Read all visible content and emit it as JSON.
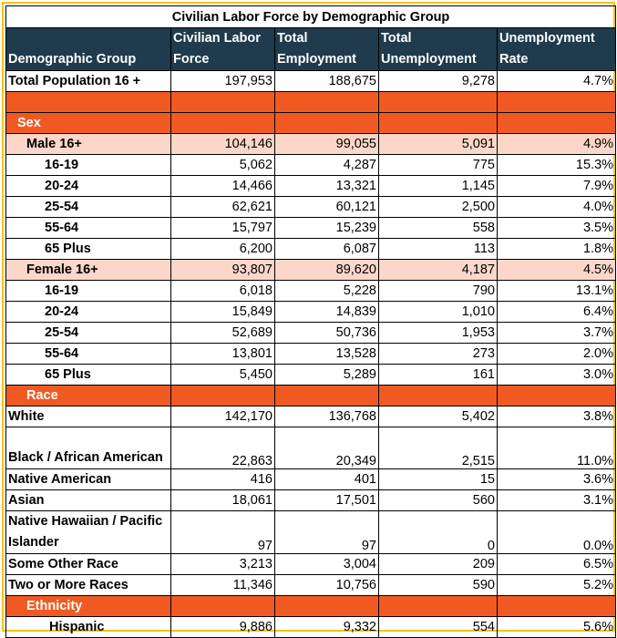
{
  "title": "Civilian Labor Force by Demographic Group",
  "headers": [
    "Demographic Group",
    "Civilian Labor Force",
    "Total Employment",
    "Total Unemployment",
    "Unemployment Rate"
  ],
  "total": {
    "label": "Total Population 16 +",
    "clf": "197,953",
    "emp": "188,675",
    "unemp": "9,278",
    "rate": "4.7%"
  },
  "sections": {
    "sex": "Sex",
    "race": "Race",
    "ethnicity": "Ethnicity"
  },
  "male": {
    "label": "Male 16+",
    "clf": "104,146",
    "emp": "99,055",
    "unemp": "5,091",
    "rate": "4.9%"
  },
  "male_ages": [
    {
      "label": "16-19",
      "clf": "5,062",
      "emp": "4,287",
      "unemp": "775",
      "rate": "15.3%"
    },
    {
      "label": "20-24",
      "clf": "14,466",
      "emp": "13,321",
      "unemp": "1,145",
      "rate": "7.9%"
    },
    {
      "label": "25-54",
      "clf": "62,621",
      "emp": "60,121",
      "unemp": "2,500",
      "rate": "4.0%"
    },
    {
      "label": "55-64",
      "clf": "15,797",
      "emp": "15,239",
      "unemp": "558",
      "rate": "3.5%"
    },
    {
      "label": "65 Plus",
      "clf": "6,200",
      "emp": "6,087",
      "unemp": "113",
      "rate": "1.8%"
    }
  ],
  "female": {
    "label": "Female 16+",
    "clf": "93,807",
    "emp": "89,620",
    "unemp": "4,187",
    "rate": "4.5%"
  },
  "female_ages": [
    {
      "label": "16-19",
      "clf": "6,018",
      "emp": "5,228",
      "unemp": "790",
      "rate": "13.1%"
    },
    {
      "label": "20-24",
      "clf": "15,849",
      "emp": "14,839",
      "unemp": "1,010",
      "rate": "6.4%"
    },
    {
      "label": "25-54",
      "clf": "52,689",
      "emp": "50,736",
      "unemp": "1,953",
      "rate": "3.7%"
    },
    {
      "label": "55-64",
      "clf": "13,801",
      "emp": "13,528",
      "unemp": "273",
      "rate": "2.0%"
    },
    {
      "label": "65 Plus",
      "clf": "5,450",
      "emp": "5,289",
      "unemp": "161",
      "rate": "3.0%"
    }
  ],
  "races": [
    {
      "label": "White",
      "clf": "142,170",
      "emp": "136,768",
      "unemp": "5,402",
      "rate": "3.8%"
    },
    {
      "label": "Black / African American",
      "clf": "22,863",
      "emp": "20,349",
      "unemp": "2,515",
      "rate": "11.0%"
    },
    {
      "label": "Native American",
      "clf": "416",
      "emp": "401",
      "unemp": "15",
      "rate": "3.6%"
    },
    {
      "label": "Asian",
      "clf": "18,061",
      "emp": "17,501",
      "unemp": "560",
      "rate": "3.1%"
    },
    {
      "label": "Native Hawaiian / Pacific Islander",
      "clf": "97",
      "emp": "97",
      "unemp": "0",
      "rate": "0.0%"
    },
    {
      "label": "Some Other Race",
      "clf": "3,213",
      "emp": "3,004",
      "unemp": "209",
      "rate": "6.5%"
    },
    {
      "label": "Two or More Races",
      "clf": "11,346",
      "emp": "10,756",
      "unemp": "590",
      "rate": "5.2%"
    }
  ],
  "hispanic": {
    "label": "Hispanic",
    "clf": "9,886",
    "emp": "9,332",
    "unemp": "554",
    "rate": "5.6%"
  }
}
